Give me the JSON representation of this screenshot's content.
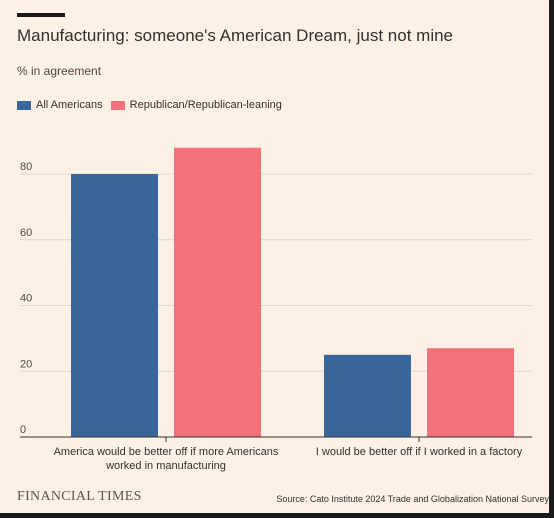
{
  "title": "Manufacturing: someone's American Dream, just not mine",
  "subtitle": "% in agreement",
  "logo": "FINANCIAL TIMES",
  "source": "Source: Cato Institute 2024 Trade and Globalization National Survey",
  "colors": {
    "background": "#fdf1e6",
    "grid": "#e2d6cb",
    "axis": "#33302e",
    "series": [
      "#3a679a",
      "#f4707b"
    ]
  },
  "chart_data": {
    "type": "bar",
    "categories": [
      [
        "America would be better off if more Americans",
        "worked in manufacturing"
      ],
      [
        "I would be better off if I worked in a factory"
      ]
    ],
    "series": [
      {
        "name": "All Americans",
        "color": "#3a679a",
        "values": [
          80,
          25
        ]
      },
      {
        "name": "Republican/Republican-leaning",
        "color": "#f4707b",
        "values": [
          88,
          27
        ]
      }
    ],
    "ylim": [
      0,
      90
    ],
    "yticks": [
      0,
      20,
      40,
      60,
      80
    ],
    "ylabel": "",
    "xlabel": "",
    "grid": true,
    "legend_position": "top-left"
  }
}
